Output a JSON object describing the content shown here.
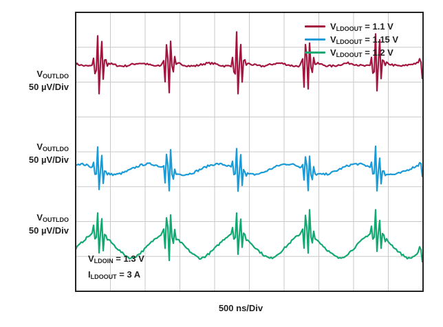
{
  "chart_data": {
    "type": "line",
    "title": "",
    "xlabel": "500 ns/Div",
    "x_divisions": 10,
    "y_divisions": 8,
    "x_range_ns": [
      0,
      5000
    ],
    "grid": true,
    "legend_placement": "top-right",
    "channel_labels": [
      {
        "main": "V",
        "sub": "OUTLDO",
        "scale": "50 µV/Div"
      },
      {
        "main": "V",
        "sub": "OUTLDO",
        "scale": "50 µV/Div"
      },
      {
        "main": "V",
        "sub": "OUTLDO",
        "scale": "50 µV/Div"
      }
    ],
    "conditions": [
      {
        "main": "V",
        "sub": "LDOIN",
        "rest": " = 1.3 V"
      },
      {
        "main": "I",
        "sub": "LDOOUT",
        "rest": " = 3 A"
      }
    ],
    "series": [
      {
        "name_main": "V",
        "name_sub": "LDOOUT",
        "name_rest": " = 1.1 V",
        "color": "#a3153f",
        "baseline_div": 1.5,
        "burst_times_ns": [
          300,
          1300,
          2300,
          3300,
          4300,
          5000
        ],
        "burst_amplitude_uV": 55,
        "ripple_uV": 5
      },
      {
        "name_main": "V",
        "name_sub": "LDOOUT",
        "name_rest": " = 1.15 V",
        "color": "#1a9bd7",
        "baseline_div": 4.5,
        "burst_times_ns": [
          300,
          1300,
          2300,
          3300,
          4300,
          5000
        ],
        "burst_amplitude_uV": 40,
        "ripple_uV": 15
      },
      {
        "name_main": "V",
        "name_sub": "LDOOUT",
        "name_rest": " = 1.2 V",
        "color": "#12a871",
        "baseline_div": 6.5,
        "burst_times_ns": [
          300,
          1300,
          2300,
          3300,
          4300,
          5000
        ],
        "burst_amplitude_uV": 45,
        "ripple_uV": 35
      }
    ]
  }
}
